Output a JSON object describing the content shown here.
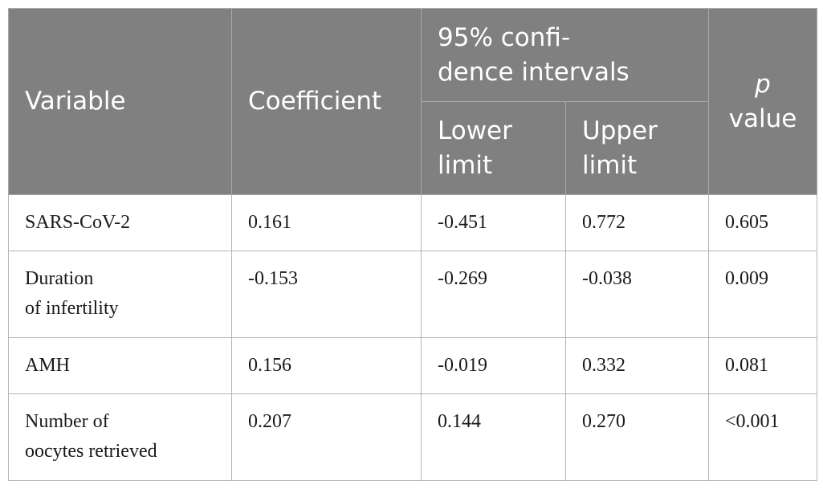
{
  "table": {
    "headers": {
      "variable": "Variable",
      "coefficient": "Coefficient",
      "ci_group_line1": "95% confi-",
      "ci_group_line2": "dence intervals",
      "lower_line1": "Lower",
      "lower_line2": "limit",
      "upper_line1": "Upper",
      "upper_line2": "limit",
      "p_symbol": "p",
      "p_word": "value"
    },
    "rows": [
      {
        "variable_line1": "SARS-CoV-2",
        "variable_line2": "",
        "coefficient": "0.161",
        "lower": "-0.451",
        "upper": "0.772",
        "p": "0.605"
      },
      {
        "variable_line1": "Duration",
        "variable_line2": "of infertility",
        "coefficient": "-0.153",
        "lower": "-0.269",
        "upper": "-0.038",
        "p": "0.009"
      },
      {
        "variable_line1": "AMH",
        "variable_line2": "",
        "coefficient": "0.156",
        "lower": "-0.019",
        "upper": "0.332",
        "p": "0.081"
      },
      {
        "variable_line1": "Number of",
        "variable_line2": "oocytes retrieved",
        "coefficient": "0.207",
        "lower": "0.144",
        "upper": "0.270",
        "p": "<0.001"
      }
    ]
  },
  "colors": {
    "header_background": "#808080",
    "header_text": "#ffffff",
    "grid_line": "#b5b5b5",
    "body_text": "#1a1a1a"
  }
}
